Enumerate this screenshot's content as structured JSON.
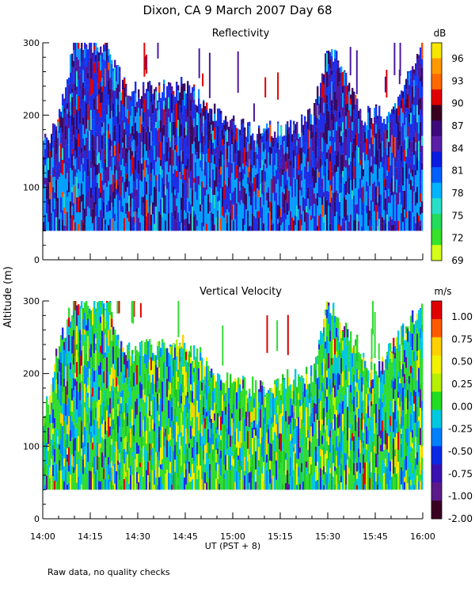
{
  "title": "Dixon, CA  9 March 2007  Day  68",
  "ylabel": "Altitude (m)",
  "xlabel": "UT  (PST + 8)",
  "footnote": "Raw data, no quality checks",
  "x_ticks": [
    "14:00",
    "14:15",
    "14:30",
    "14:45",
    "15:00",
    "15:15",
    "15:30",
    "15:45",
    "16:00"
  ],
  "chart_data": [
    {
      "type": "heatmap",
      "title": "Reflectivity",
      "units": "dB",
      "xlim": [
        "14:00",
        "16:00"
      ],
      "ylim": [
        0,
        300
      ],
      "y_ticks": [
        0,
        100,
        200,
        300
      ],
      "colorbar_ticks": [
        "96",
        "93",
        "90",
        "87",
        "84",
        "81",
        "78",
        "75",
        "72",
        "69"
      ],
      "colorbar_colors": [
        "#f7e600",
        "#ff9900",
        "#ff6a00",
        "#e00000",
        "#3a0022",
        "#3d0a7a",
        "#5a1fa8",
        "#0a1ce0",
        "#0060ff",
        "#00b4ff",
        "#28e0c8",
        "#22dc5a",
        "#36e22a",
        "#d6ff1a"
      ],
      "data_floor_m": 40,
      "echo_top_profile": [
        {
          "t": "14:00",
          "top_m": 160
        },
        {
          "t": "14:05",
          "top_m": 200
        },
        {
          "t": "14:10",
          "top_m": 300
        },
        {
          "t": "14:20",
          "top_m": 300
        },
        {
          "t": "14:25",
          "top_m": 240
        },
        {
          "t": "14:30",
          "top_m": 230
        },
        {
          "t": "14:45",
          "top_m": 240
        },
        {
          "t": "14:55",
          "top_m": 200
        },
        {
          "t": "15:05",
          "top_m": 180
        },
        {
          "t": "15:20",
          "top_m": 180
        },
        {
          "t": "15:25",
          "top_m": 200
        },
        {
          "t": "15:30",
          "top_m": 300
        },
        {
          "t": "15:40",
          "top_m": 200
        },
        {
          "t": "15:50",
          "top_m": 200
        },
        {
          "t": "16:00",
          "top_m": 300
        }
      ]
    },
    {
      "type": "heatmap",
      "title": "Vertical Velocity",
      "units": "m/s",
      "xlim": [
        "14:00",
        "16:00"
      ],
      "ylim": [
        0,
        300
      ],
      "y_ticks": [
        0,
        100,
        200,
        300
      ],
      "colorbar_ticks": [
        "1.00",
        "0.75",
        "0.50",
        "0.25",
        "0.00",
        "-0.25",
        "-0.50",
        "-0.75",
        "-1.00",
        "-2.00"
      ],
      "colorbar_colors": [
        "#e00000",
        "#ff5a00",
        "#ffd000",
        "#f2f200",
        "#b6f000",
        "#22dc22",
        "#00c8e0",
        "#0080ff",
        "#0a2ae6",
        "#3a10b0",
        "#5a1a8a",
        "#3a0022"
      ],
      "data_floor_m": 40,
      "echo_top_profile": [
        {
          "t": "14:00",
          "top_m": 140
        },
        {
          "t": "14:05",
          "top_m": 240
        },
        {
          "t": "14:10",
          "top_m": 300
        },
        {
          "t": "14:20",
          "top_m": 300
        },
        {
          "t": "14:25",
          "top_m": 230
        },
        {
          "t": "14:45",
          "top_m": 240
        },
        {
          "t": "14:55",
          "top_m": 200
        },
        {
          "t": "15:05",
          "top_m": 180
        },
        {
          "t": "15:25",
          "top_m": 200
        },
        {
          "t": "15:30",
          "top_m": 300
        },
        {
          "t": "15:45",
          "top_m": 200
        },
        {
          "t": "16:00",
          "top_m": 300
        }
      ]
    }
  ]
}
